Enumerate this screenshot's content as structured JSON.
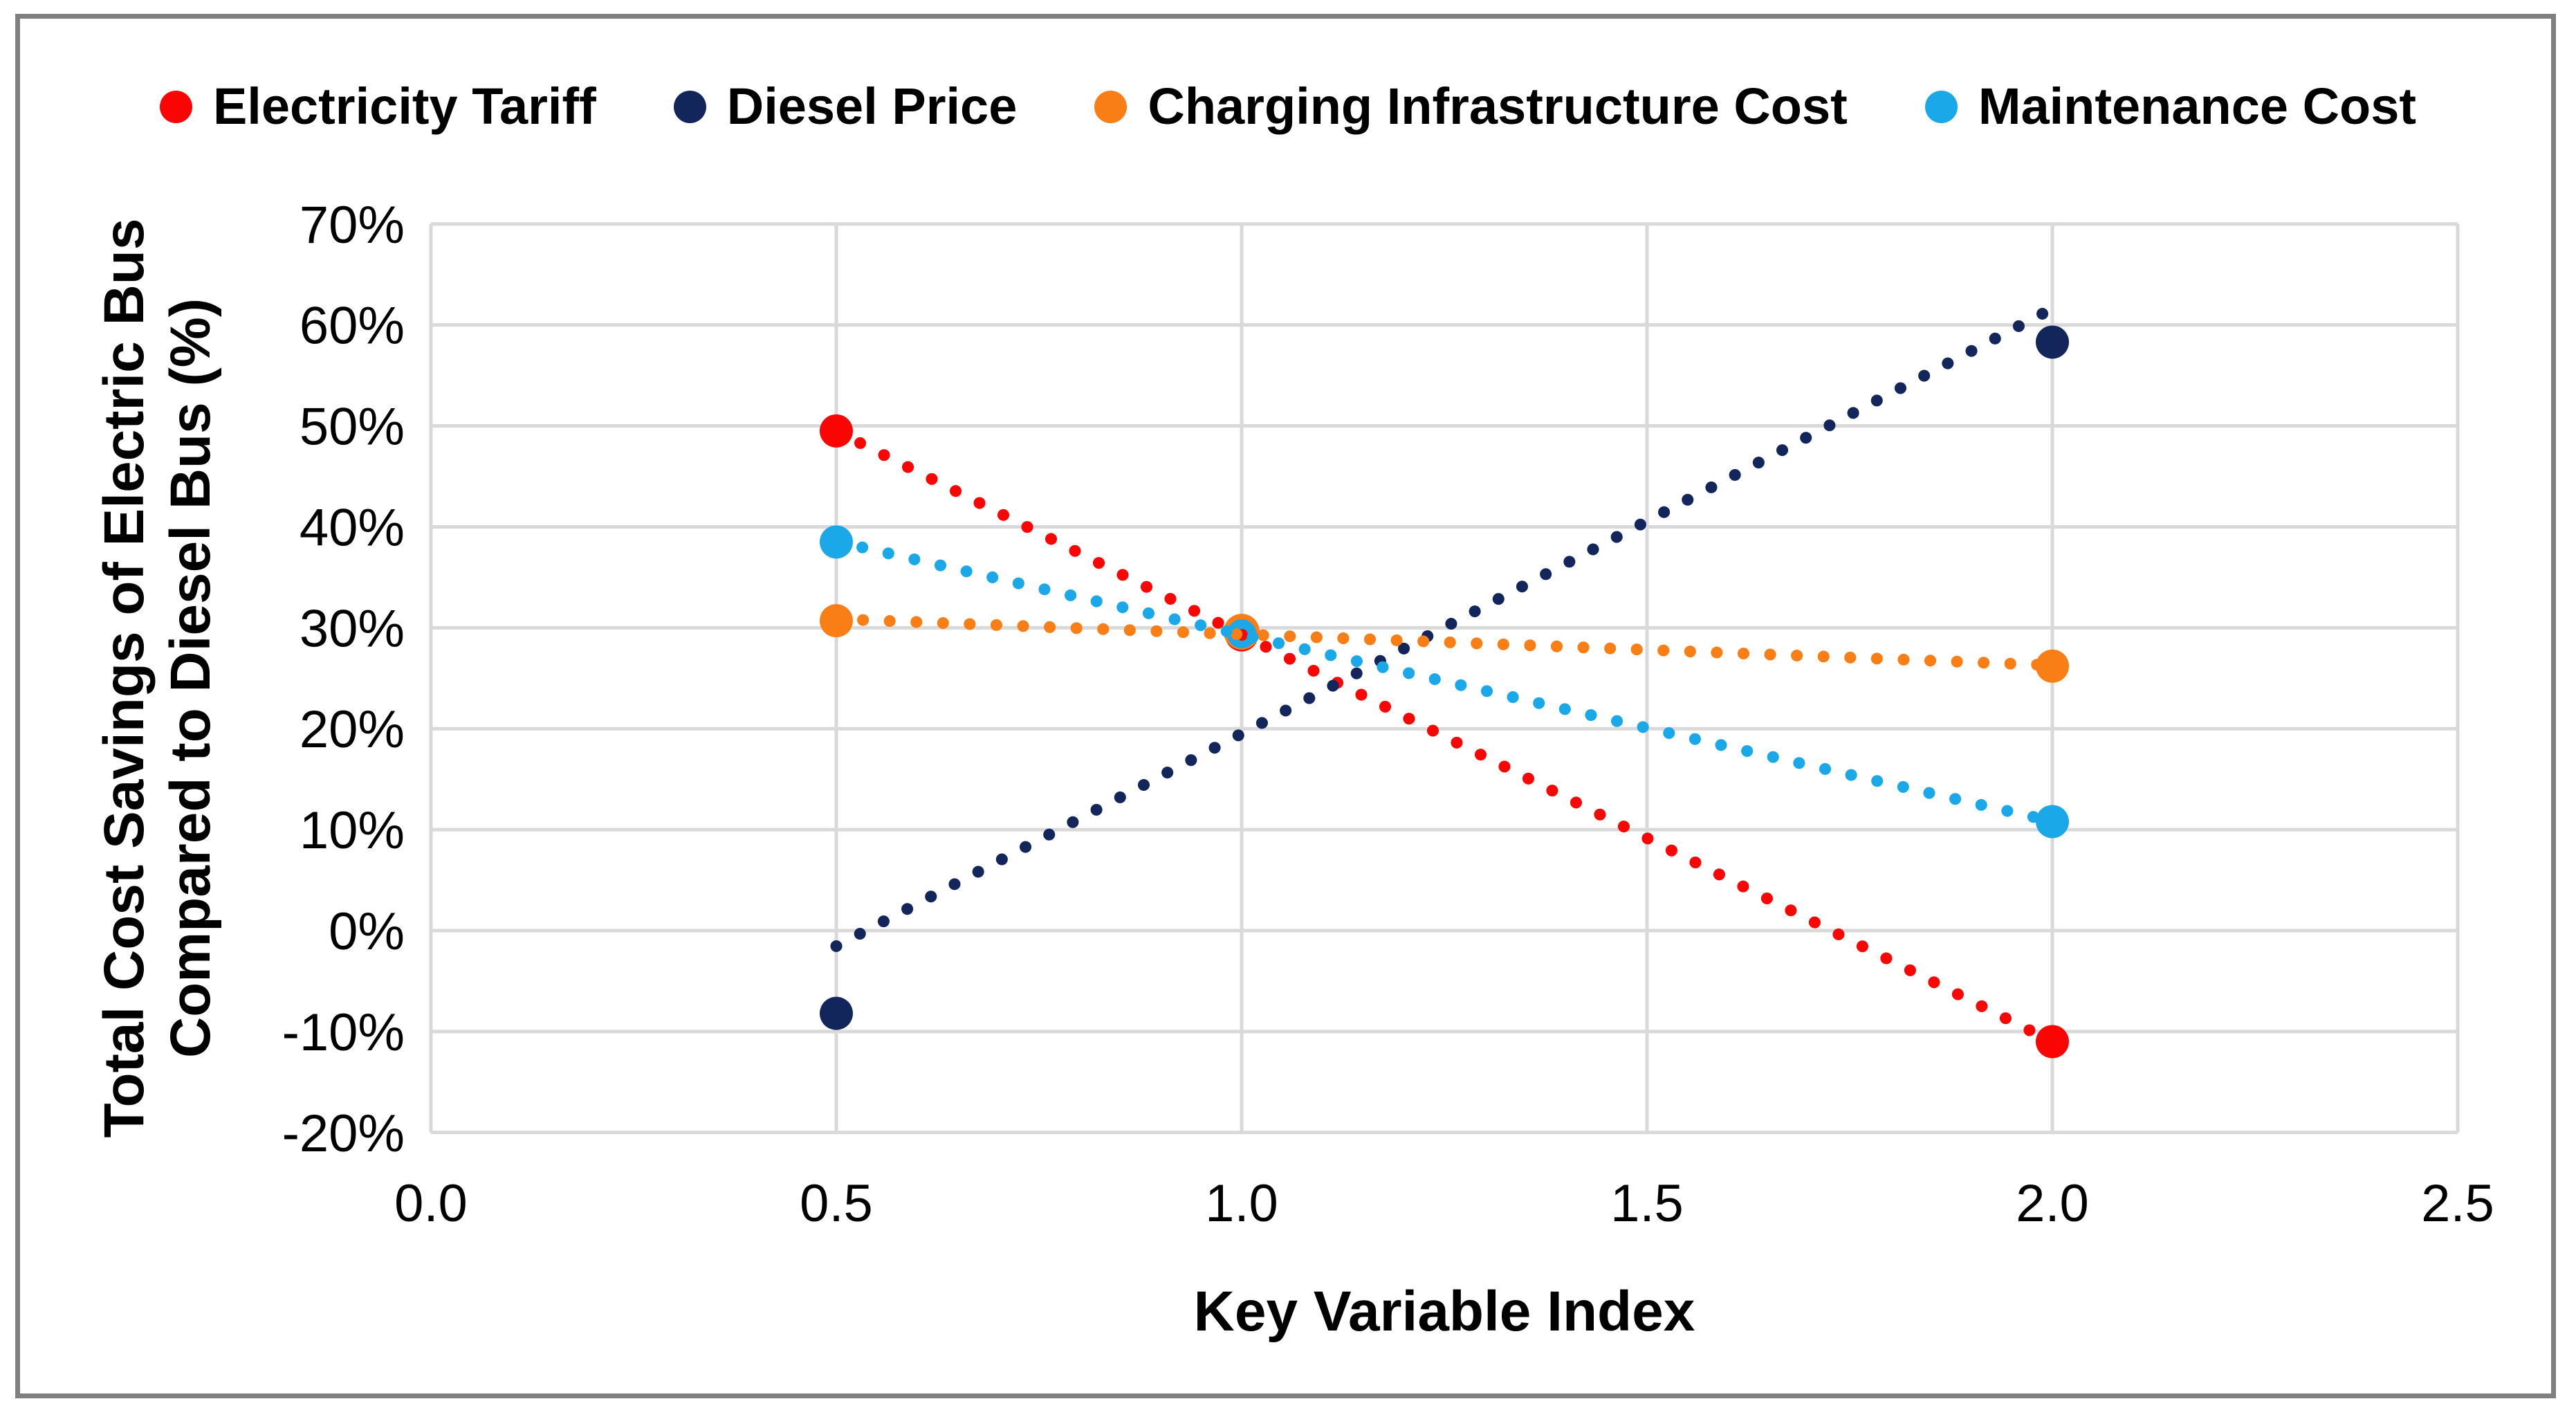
{
  "colors": {
    "background": "#FFFFFF",
    "frame_border": "#7F7F7F",
    "gridline": "#D9D9D9",
    "text": "#000000"
  },
  "chart_data": {
    "type": "scatter",
    "title": "",
    "xlabel": "Key Variable Index",
    "ylabel_lines": [
      "Total Cost Savings of Electric Bus",
      "Compared to Diesel Bus (%)"
    ],
    "xlim": [
      0.0,
      2.5
    ],
    "ylim_pct": [
      -20,
      70
    ],
    "x_tick_labels": [
      "0.0",
      "0.5",
      "1.0",
      "1.5",
      "2.0",
      "2.5"
    ],
    "x_tick_values": [
      0.0,
      0.5,
      1.0,
      1.5,
      2.0,
      2.5
    ],
    "y_tick_labels": [
      "70%",
      "60%",
      "50%",
      "40%",
      "30%",
      "20%",
      "10%",
      "0%",
      "-10%",
      "-20%"
    ],
    "y_tick_values": [
      70,
      60,
      50,
      40,
      30,
      20,
      10,
      0,
      -10,
      -20
    ],
    "grid": true,
    "legend_position": "top",
    "marker_style": "filled-circle",
    "trendline_style": "dotted-linear-fit",
    "trend_x_range": [
      0.5,
      2.0
    ],
    "series": [
      {
        "name": "Electricity Tariff",
        "color": "#FB0404",
        "x": [
          0.5,
          1.0,
          2.0
        ],
        "y_pct": [
          49.5,
          29.3,
          -11.0
        ]
      },
      {
        "name": "Diesel Price",
        "color": "#13265B",
        "x": [
          0.5,
          1.0,
          2.0
        ],
        "y_pct": [
          -8.2,
          29.5,
          58.3
        ]
      },
      {
        "name": "Charging Infrastructure Cost",
        "color": "#F97E16",
        "x": [
          0.5,
          1.0,
          2.0
        ],
        "y_pct": [
          30.7,
          29.6,
          26.2
        ]
      },
      {
        "name": "Maintenance Cost",
        "color": "#1BA8E8",
        "x": [
          0.5,
          1.0,
          2.0
        ],
        "y_pct": [
          38.5,
          29.4,
          10.8
        ]
      }
    ]
  }
}
